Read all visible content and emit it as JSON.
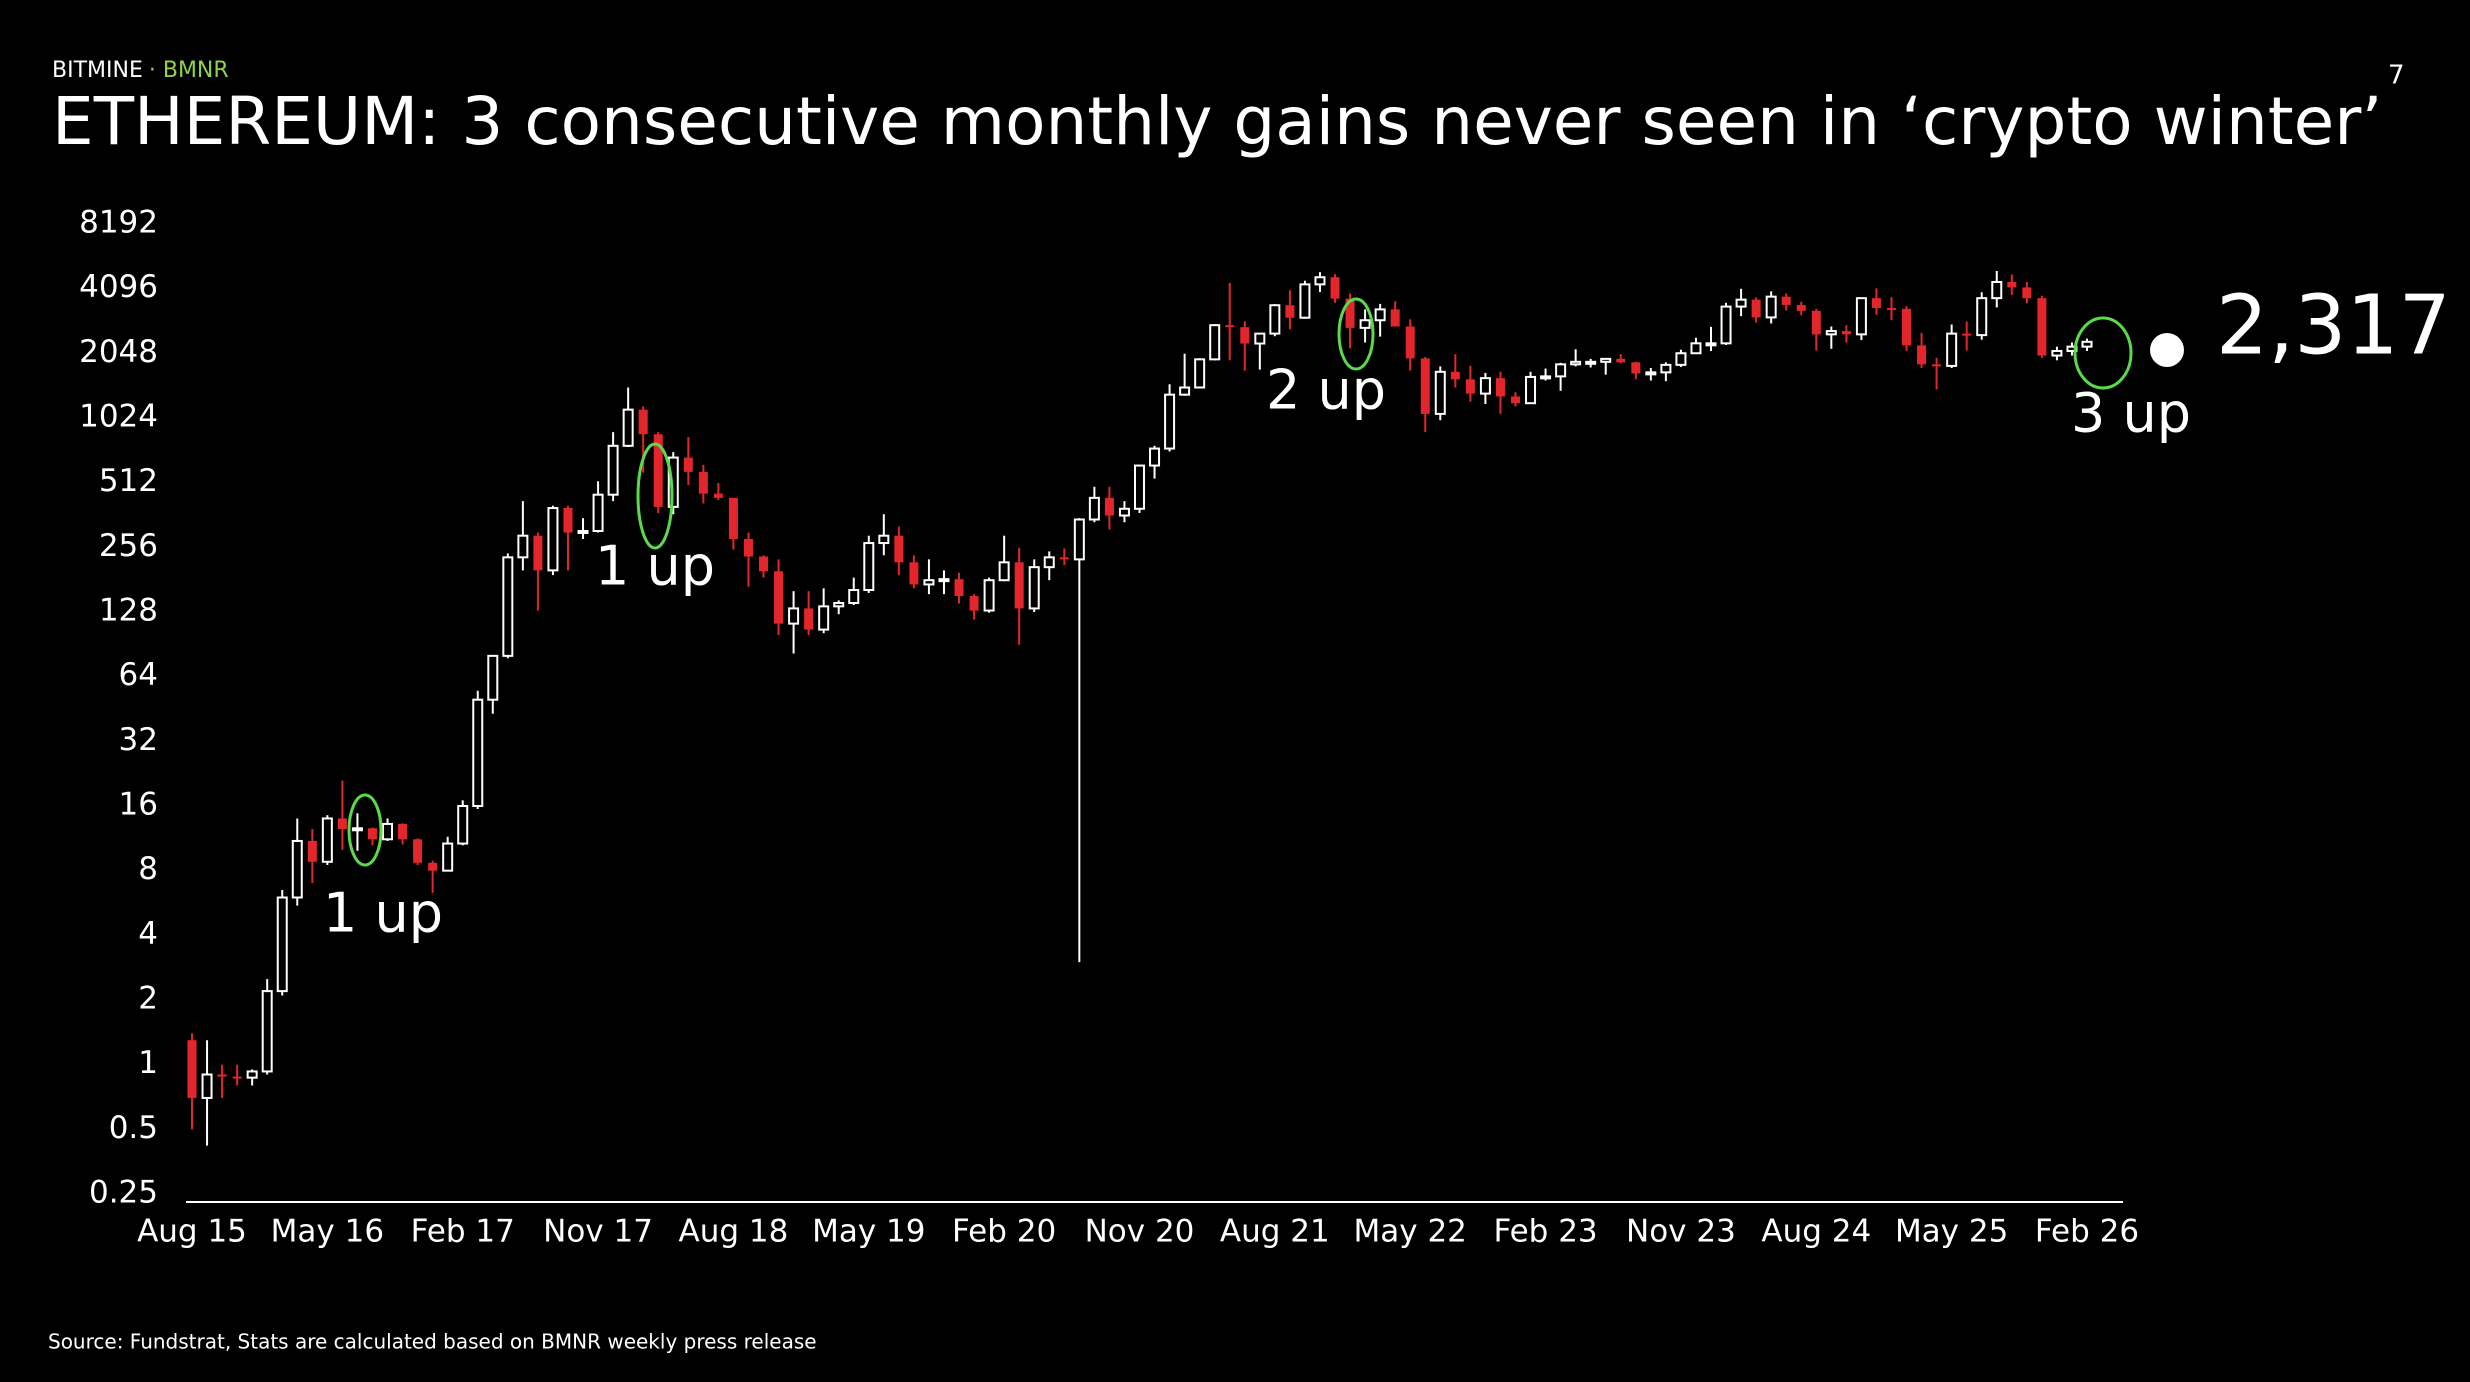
{
  "header": {
    "brand": "BITMINE",
    "ticker": "· BMNR"
  },
  "page_number": "7",
  "chart_data": {
    "type": "candlestick",
    "title": "ETHEREUM: 3 consecutive monthly gains never seen in ‘crypto winter’",
    "source": "Source: Fundstrat, Stats are calculated based on BMNR weekly press release",
    "log_scale": true,
    "up_color": "#ffffff",
    "down_color": "#e3262c",
    "annotation_color": "#5cd94a",
    "ylim": [
      0.25,
      8192
    ],
    "yticks": [
      0.25,
      0.5,
      1,
      2,
      4,
      8,
      16,
      32,
      64,
      128,
      256,
      512,
      1024,
      2048,
      4096,
      8192
    ],
    "annotations": [
      "1 up",
      "1 up",
      "2 up",
      "3 up"
    ],
    "last_value_label": "2,317",
    "x": [
      "Aug 15",
      null,
      null,
      null,
      null,
      null,
      null,
      null,
      null,
      "May 16",
      null,
      null,
      null,
      null,
      null,
      null,
      null,
      null,
      "Feb 17",
      null,
      null,
      null,
      null,
      null,
      null,
      null,
      null,
      "Nov 17",
      null,
      null,
      null,
      null,
      null,
      null,
      null,
      null,
      "Aug 18",
      null,
      null,
      null,
      null,
      null,
      null,
      null,
      null,
      "May 19",
      null,
      null,
      null,
      null,
      null,
      null,
      null,
      null,
      "Feb 20",
      null,
      null,
      null,
      null,
      null,
      null,
      null,
      null,
      "Nov 20",
      null,
      null,
      null,
      null,
      null,
      null,
      null,
      null,
      "Aug 21",
      null,
      null,
      null,
      null,
      null,
      null,
      null,
      null,
      "May 22",
      null,
      null,
      null,
      null,
      null,
      null,
      null,
      null,
      "Feb 23",
      null,
      null,
      null,
      null,
      null,
      null,
      null,
      null,
      "Nov 23",
      null,
      null,
      null,
      null,
      null,
      null,
      null,
      null,
      "Aug 24",
      null,
      null,
      null,
      null,
      null,
      null,
      null,
      null,
      "May 25",
      null,
      null,
      null,
      null,
      null,
      null,
      null,
      null,
      "Feb 26"
    ],
    "ohlc": [
      [
        1.3,
        1.4,
        0.5,
        0.7
      ],
      [
        0.7,
        1.3,
        0.42,
        0.9
      ],
      [
        0.9,
        1.0,
        0.7,
        0.88
      ],
      [
        0.88,
        1.0,
        0.8,
        0.87
      ],
      [
        0.87,
        0.95,
        0.8,
        0.93
      ],
      [
        0.93,
        2.5,
        0.9,
        2.2
      ],
      [
        2.2,
        6.5,
        2.1,
        6
      ],
      [
        6,
        14,
        5.5,
        11
      ],
      [
        11,
        12.5,
        7,
        8.8
      ],
      [
        8.8,
        14.5,
        8.5,
        14
      ],
      [
        14,
        21,
        10,
        12.5
      ],
      [
        12.5,
        14.8,
        9.9,
        12.6
      ],
      [
        12.6,
        12.7,
        10.5,
        11.2
      ],
      [
        11.2,
        14,
        11,
        13.2
      ],
      [
        13.2,
        13.3,
        10.6,
        11.2
      ],
      [
        11.2,
        11.3,
        8.5,
        8.7
      ],
      [
        8.7,
        8.9,
        6.3,
        8
      ],
      [
        8,
        11.5,
        8,
        10.7
      ],
      [
        10.7,
        17,
        10.5,
        16
      ],
      [
        16,
        55,
        15.5,
        50
      ],
      [
        50,
        80,
        43,
        80
      ],
      [
        80,
        240,
        78,
        230
      ],
      [
        230,
        420,
        200,
        290
      ],
      [
        290,
        300,
        130,
        200
      ],
      [
        200,
        400,
        190,
        390
      ],
      [
        390,
        400,
        200,
        300
      ],
      [
        300,
        350,
        280,
        305
      ],
      [
        305,
        520,
        300,
        450
      ],
      [
        450,
        880,
        420,
        760
      ],
      [
        760,
        1420,
        750,
        1120
      ],
      [
        1120,
        1160,
        570,
        860
      ],
      [
        860,
        880,
        370,
        395
      ],
      [
        395,
        710,
        365,
        670
      ],
      [
        670,
        835,
        500,
        575
      ],
      [
        575,
        620,
        410,
        455
      ],
      [
        455,
        510,
        425,
        435
      ],
      [
        435,
        435,
        250,
        280
      ],
      [
        280,
        300,
        168,
        232
      ],
      [
        232,
        235,
        185,
        198
      ],
      [
        198,
        225,
        100,
        113
      ],
      [
        113,
        160,
        82,
        133
      ],
      [
        133,
        160,
        100,
        106
      ],
      [
        106,
        165,
        102,
        136
      ],
      [
        136,
        145,
        125,
        141
      ],
      [
        141,
        185,
        138,
        162
      ],
      [
        162,
        290,
        157,
        268
      ],
      [
        268,
        365,
        235,
        290
      ],
      [
        290,
        320,
        190,
        218
      ],
      [
        218,
        235,
        165,
        172
      ],
      [
        172,
        225,
        155,
        180
      ],
      [
        180,
        200,
        155,
        182
      ],
      [
        182,
        195,
        140,
        152
      ],
      [
        152,
        155,
        118,
        130
      ],
      [
        130,
        185,
        127,
        180
      ],
      [
        180,
        290,
        178,
        218
      ],
      [
        218,
        255,
        90,
        133
      ],
      [
        133,
        225,
        128,
        207
      ],
      [
        207,
        245,
        180,
        230
      ],
      [
        230,
        253,
        212,
        225
      ],
      [
        225,
        350,
        3,
        345
      ],
      [
        345,
        490,
        335,
        435
      ],
      [
        435,
        490,
        310,
        360
      ],
      [
        360,
        420,
        335,
        387
      ],
      [
        387,
        620,
        370,
        615
      ],
      [
        615,
        760,
        535,
        738
      ],
      [
        738,
        1470,
        715,
        1315
      ],
      [
        1315,
        2040,
        1300,
        1420
      ],
      [
        1420,
        1945,
        1410,
        1920
      ],
      [
        1920,
        2800,
        1900,
        2770
      ],
      [
        2770,
        4360,
        1900,
        2710
      ],
      [
        2710,
        2890,
        1700,
        2275
      ],
      [
        2275,
        2550,
        1720,
        2530
      ],
      [
        2530,
        3470,
        2460,
        3430
      ],
      [
        3430,
        4030,
        2650,
        3000
      ],
      [
        3000,
        4460,
        2970,
        4290
      ],
      [
        4290,
        4890,
        3950,
        4630
      ],
      [
        4630,
        4780,
        3520,
        3680
      ],
      [
        3680,
        3900,
        2160,
        2690
      ],
      [
        2690,
        3280,
        2300,
        2920
      ],
      [
        2920,
        3480,
        2450,
        3280
      ],
      [
        3280,
        3580,
        2790,
        2730
      ],
      [
        2730,
        2950,
        1700,
        1940
      ],
      [
        1940,
        1970,
        880,
        1070
      ],
      [
        1070,
        1780,
        1000,
        1680
      ],
      [
        1680,
        2030,
        1420,
        1550
      ],
      [
        1550,
        1790,
        1220,
        1330
      ],
      [
        1330,
        1660,
        1190,
        1570
      ],
      [
        1570,
        1680,
        1070,
        1290
      ],
      [
        1290,
        1350,
        1160,
        1200
      ],
      [
        1200,
        1680,
        1190,
        1590
      ],
      [
        1590,
        1740,
        1530,
        1600
      ],
      [
        1600,
        1850,
        1370,
        1820
      ],
      [
        1820,
        2140,
        1780,
        1870
      ],
      [
        1870,
        1930,
        1760,
        1870
      ],
      [
        1870,
        1930,
        1630,
        1930
      ],
      [
        1930,
        2030,
        1840,
        1860
      ],
      [
        1860,
        1870,
        1550,
        1650
      ],
      [
        1650,
        1750,
        1530,
        1670
      ],
      [
        1670,
        1860,
        1520,
        1810
      ],
      [
        1810,
        2130,
        1770,
        2050
      ],
      [
        2050,
        2420,
        2040,
        2280
      ],
      [
        2280,
        2720,
        2100,
        2280
      ],
      [
        2280,
        3520,
        2240,
        3380
      ],
      [
        3380,
        4090,
        3050,
        3640
      ],
      [
        3640,
        3730,
        2850,
        3010
      ],
      [
        3010,
        3980,
        2820,
        3760
      ],
      [
        3760,
        3890,
        3240,
        3440
      ],
      [
        3440,
        3560,
        3080,
        3230
      ],
      [
        3230,
        3300,
        2110,
        2510
      ],
      [
        2510,
        2730,
        2150,
        2600
      ],
      [
        2600,
        2770,
        2300,
        2510
      ],
      [
        2510,
        3730,
        2360,
        3700
      ],
      [
        3700,
        4110,
        3100,
        3330
      ],
      [
        3330,
        3740,
        2920,
        3300
      ],
      [
        3300,
        3400,
        2100,
        2230
      ],
      [
        2230,
        2550,
        1750,
        1820
      ],
      [
        1820,
        1950,
        1390,
        1790
      ],
      [
        1790,
        2790,
        1750,
        2530
      ],
      [
        2530,
        2880,
        2110,
        2490
      ],
      [
        2490,
        3940,
        2370,
        3700
      ],
      [
        3700,
        4950,
        3350,
        4400
      ],
      [
        4400,
        4770,
        3830,
        4150
      ],
      [
        4150,
        4400,
        3500,
        3700
      ],
      [
        3700,
        3800,
        1950,
        2000
      ],
      [
        2000,
        2200,
        1900,
        2100
      ],
      [
        2100,
        2300,
        2000,
        2200
      ],
      [
        2200,
        2400,
        2100,
        2317
      ]
    ]
  }
}
